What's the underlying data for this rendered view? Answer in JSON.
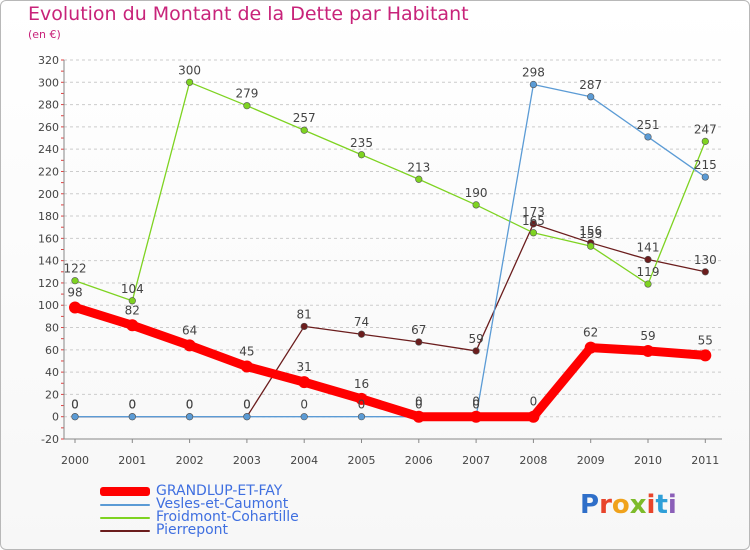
{
  "header": {
    "title": "Evolution du Montant de la Dette par Habitant",
    "subtitle": "(en €)"
  },
  "logo": {
    "text": "Proxiti",
    "letter_colors": [
      "#2f6fc9",
      "#e8442b",
      "#f0a21c",
      "#7dbb2a",
      "#e8442b",
      "#2f9fd8",
      "#8b5fb8"
    ]
  },
  "colors": {
    "title": "#c8237a",
    "axis": "#888888",
    "grid": "#cccccc",
    "labels": "#444444",
    "legend_text": "#3f6fe0"
  },
  "chart_data": {
    "type": "line",
    "title": "Evolution du Montant de la Dette par Habitant",
    "subtitle": "(en €)",
    "x": [
      "2000",
      "2001",
      "2002",
      "2003",
      "2004",
      "2005",
      "2006",
      "2007",
      "2008",
      "2009",
      "2010",
      "2011"
    ],
    "ylim": [
      -20,
      320
    ],
    "yticks": [
      -20,
      0,
      20,
      40,
      60,
      80,
      100,
      120,
      140,
      160,
      180,
      200,
      220,
      240,
      260,
      280,
      300,
      320
    ],
    "grid": "horizontal dashed",
    "legend_position": "bottom-left",
    "series": [
      {
        "name": "Pierrepont",
        "color": "#6b1d1d",
        "values": [
          0,
          0,
          0,
          0,
          81,
          74,
          67,
          59,
          173,
          156,
          141,
          130
        ]
      },
      {
        "name": "Froidmont-Cohartille",
        "color": "#7ed321",
        "values": [
          122,
          104,
          300,
          279,
          257,
          235,
          213,
          190,
          165,
          153,
          119,
          247
        ]
      },
      {
        "name": "Vesles-et-Caumont",
        "color": "#5b9bd5",
        "values": [
          0,
          0,
          0,
          0,
          0,
          0,
          0,
          0,
          298,
          287,
          251,
          215
        ]
      },
      {
        "name": "GRANDLUP-ET-FAY",
        "color": "#ff0000",
        "values": [
          98,
          82,
          64,
          45,
          31,
          16,
          0,
          0,
          0,
          62,
          59,
          55
        ]
      }
    ]
  }
}
